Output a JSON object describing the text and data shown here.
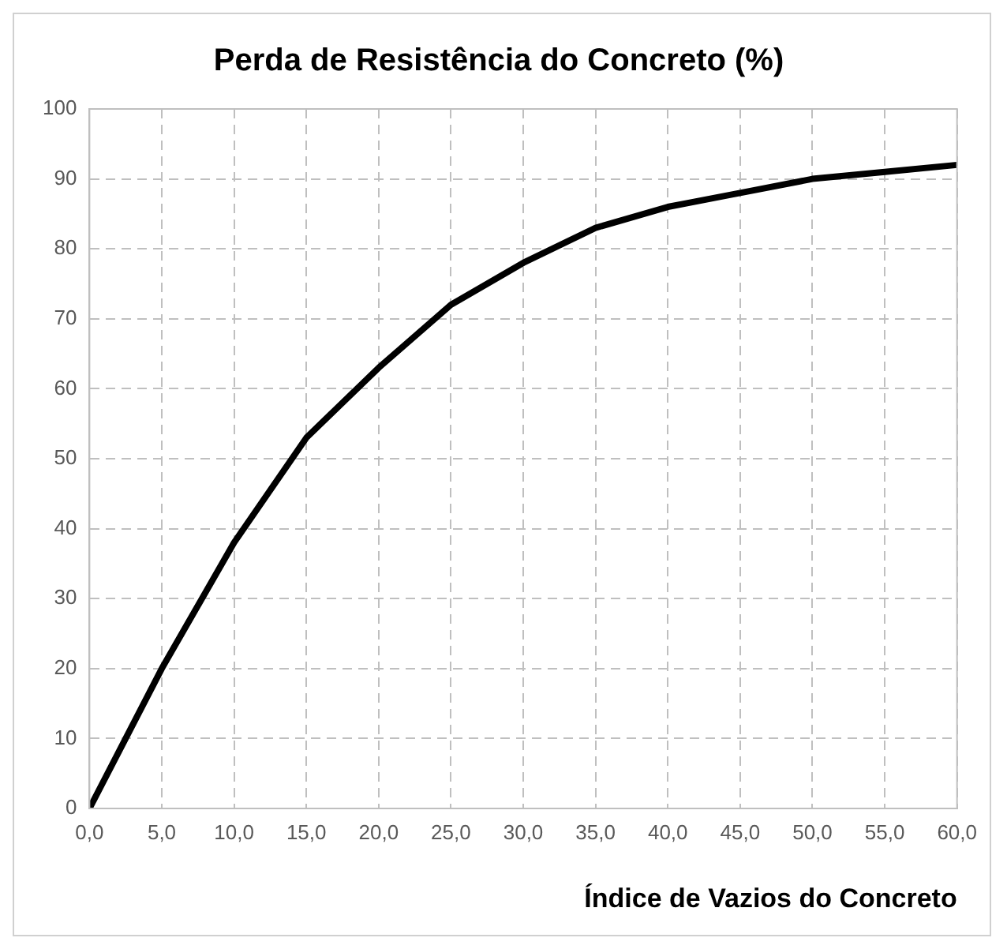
{
  "chart_data": {
    "type": "line",
    "title": "Perda de Resistência do Concreto (%)",
    "xlabel": "Índice de Vazios do Concreto",
    "x": [
      0,
      5,
      10,
      15,
      20,
      25,
      30,
      35,
      40,
      45,
      50,
      55,
      60
    ],
    "series": [
      {
        "color": "#000000",
        "values": [
          0,
          20,
          38,
          53,
          63,
          72,
          78,
          83,
          86,
          88,
          90,
          91,
          92
        ]
      }
    ],
    "xlim": [
      0,
      60
    ],
    "ylim": [
      0,
      100
    ],
    "xticks": [
      {
        "value": 0,
        "label": "0,0"
      },
      {
        "value": 5,
        "label": "5,0"
      },
      {
        "value": 10,
        "label": "10,0"
      },
      {
        "value": 15,
        "label": "15,0"
      },
      {
        "value": 20,
        "label": "20,0"
      },
      {
        "value": 25,
        "label": "25,0"
      },
      {
        "value": 30,
        "label": "30,0"
      },
      {
        "value": 35,
        "label": "35,0"
      },
      {
        "value": 40,
        "label": "40,0"
      },
      {
        "value": 45,
        "label": "45,0"
      },
      {
        "value": 50,
        "label": "50,0"
      },
      {
        "value": 55,
        "label": "55,0"
      },
      {
        "value": 60,
        "label": "60,0"
      }
    ],
    "yticks": [
      0,
      10,
      20,
      30,
      40,
      50,
      60,
      70,
      80,
      90,
      100
    ],
    "grid": true,
    "legend": false,
    "marker": "none",
    "line_style": "solid"
  }
}
